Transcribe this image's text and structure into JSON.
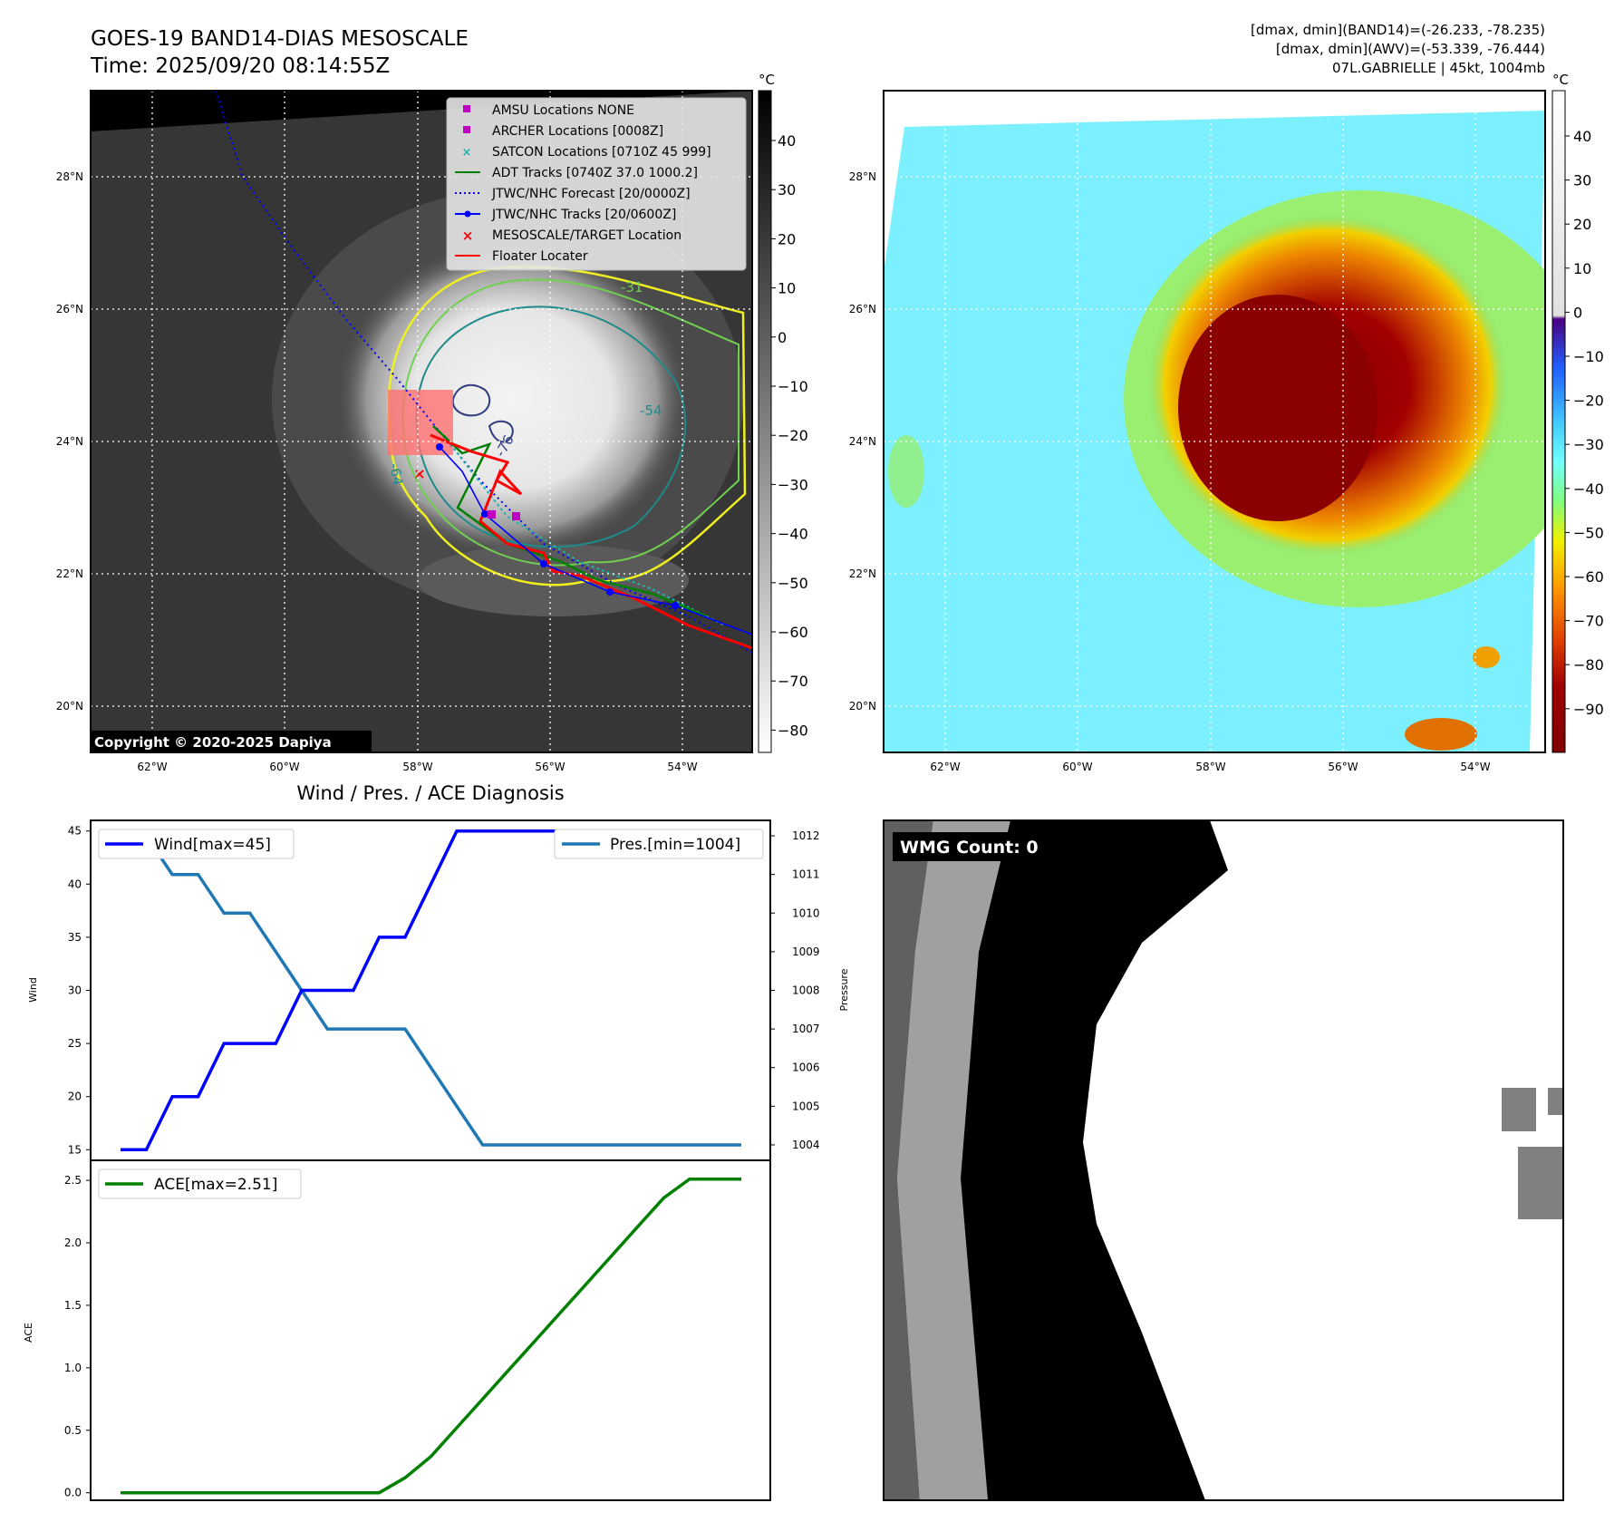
{
  "header": {
    "title_line1": "GOES-19 BAND14-DIAS MESOSCALE",
    "title_line2": "Time: 2025/09/20 08:14:55Z",
    "info_line1": "[dmax, dmin](BAND14)=(-26.233, -78.235)",
    "info_line2": "[dmax, dmin](AWV)=(-53.339, -76.444)",
    "info_line3": "07L.GABRIELLE | 45kt, 1004mb"
  },
  "map": {
    "lat_labels": [
      "28°N",
      "26°N",
      "24°N",
      "22°N",
      "20°N"
    ],
    "lon_labels": [
      "62°W",
      "60°W",
      "58°W",
      "56°W",
      "54°W"
    ],
    "colorbar_unit": "°C",
    "cbar_left_ticks": [
      "40",
      "30",
      "20",
      "10",
      "0",
      "−10",
      "−20",
      "−30",
      "−40",
      "−50",
      "−60",
      "−70",
      "−80"
    ],
    "cbar_right_ticks": [
      "40",
      "30",
      "20",
      "10",
      "0",
      "−10",
      "−20",
      "−30",
      "−40",
      "−50",
      "−60",
      "−70",
      "−80",
      "−90"
    ],
    "copyright": "Copyright © 2020-2025 Dapiya",
    "contour_labels": [
      "-31",
      "-54",
      "-76",
      "-64"
    ],
    "legend": [
      "AMSU Locations NONE",
      "ARCHER Locations [0008Z]",
      "SATCON Locations [0710Z 45 999]",
      "ADT Tracks [0740Z 37.0 1000.2]",
      "JTWC/NHC Forecast [20/0000Z]",
      "JTWC/NHC Tracks [20/0600Z]",
      "MESOSCALE/TARGET Location",
      "Floater Locater"
    ],
    "colors": {
      "amsu": "#c000c0",
      "archer": "#c000c0",
      "satcon": "#20b2aa",
      "adt": "#008000",
      "forecast": "#0000ff",
      "tracks": "#0000ff",
      "target": "#ff0000",
      "floater": "#ff0000"
    }
  },
  "diagnosis": {
    "title": "Wind / Pres. / ACE Diagnosis",
    "wind_axis_label": "Wind",
    "pressure_axis_label": "Pressure",
    "ace_axis_label": "ACE",
    "wind_ticks": [
      "45",
      "40",
      "35",
      "30",
      "25",
      "20",
      "15"
    ],
    "pressure_ticks": [
      "1012",
      "1011",
      "1010",
      "1009",
      "1008",
      "1007",
      "1006",
      "1005",
      "1004"
    ],
    "ace_ticks": [
      "2.5",
      "2.0",
      "1.5",
      "1.0",
      "0.5",
      "0.0"
    ],
    "legend_wind": "Wind[max=45]",
    "legend_pres": "Pres.[min=1004]",
    "legend_ace": "ACE[max=2.51]"
  },
  "wmg": {
    "label": "WMG Count: 0"
  },
  "chart_data": [
    {
      "type": "line",
      "title": "Wind / Pres. / ACE Diagnosis",
      "ylabel": "Wind",
      "ylim": [
        14,
        46
      ],
      "series": [
        {
          "name": "Wind[max=45]",
          "color": "#0000ff",
          "x": [
            0,
            1,
            2,
            3,
            4,
            5,
            6,
            7,
            8,
            9,
            10,
            11,
            12,
            13,
            14,
            15,
            16,
            17,
            18,
            19,
            20,
            21,
            22,
            23,
            24
          ],
          "values": [
            15,
            15,
            20,
            20,
            25,
            25,
            25,
            30,
            30,
            30,
            35,
            35,
            40,
            45,
            45,
            45,
            45,
            45,
            45,
            45,
            45,
            45,
            45,
            45,
            45
          ]
        }
      ]
    },
    {
      "type": "line",
      "ylabel": "Pressure",
      "ylim": [
        1003.6,
        1012.4
      ],
      "series": [
        {
          "name": "Pres.[min=1004]",
          "color": "#1f77b4",
          "x": [
            0,
            1,
            2,
            3,
            4,
            5,
            6,
            7,
            8,
            9,
            10,
            11,
            12,
            13,
            14,
            15,
            16,
            17,
            18,
            19,
            20,
            21,
            22,
            23,
            24
          ],
          "values": [
            1012,
            1012,
            1011,
            1011,
            1010,
            1010,
            1009,
            1008,
            1007,
            1007,
            1007,
            1007,
            1006,
            1005,
            1004,
            1004,
            1004,
            1004,
            1004,
            1004,
            1004,
            1004,
            1004,
            1004,
            1004
          ]
        }
      ]
    },
    {
      "type": "line",
      "ylabel": "ACE",
      "ylim": [
        -0.06,
        2.66
      ],
      "series": [
        {
          "name": "ACE[max=2.51]",
          "color": "#008000",
          "x": [
            0,
            1,
            2,
            3,
            4,
            5,
            6,
            7,
            8,
            9,
            10,
            11,
            12,
            13,
            14,
            15,
            16,
            17,
            18,
            19,
            20,
            21,
            22,
            23,
            24
          ],
          "values": [
            0,
            0,
            0,
            0,
            0,
            0,
            0,
            0,
            0,
            0,
            0,
            0.12,
            0.29,
            0.52,
            0.75,
            0.98,
            1.21,
            1.44,
            1.67,
            1.9,
            2.13,
            2.36,
            2.51,
            2.51,
            2.51
          ]
        }
      ]
    }
  ]
}
